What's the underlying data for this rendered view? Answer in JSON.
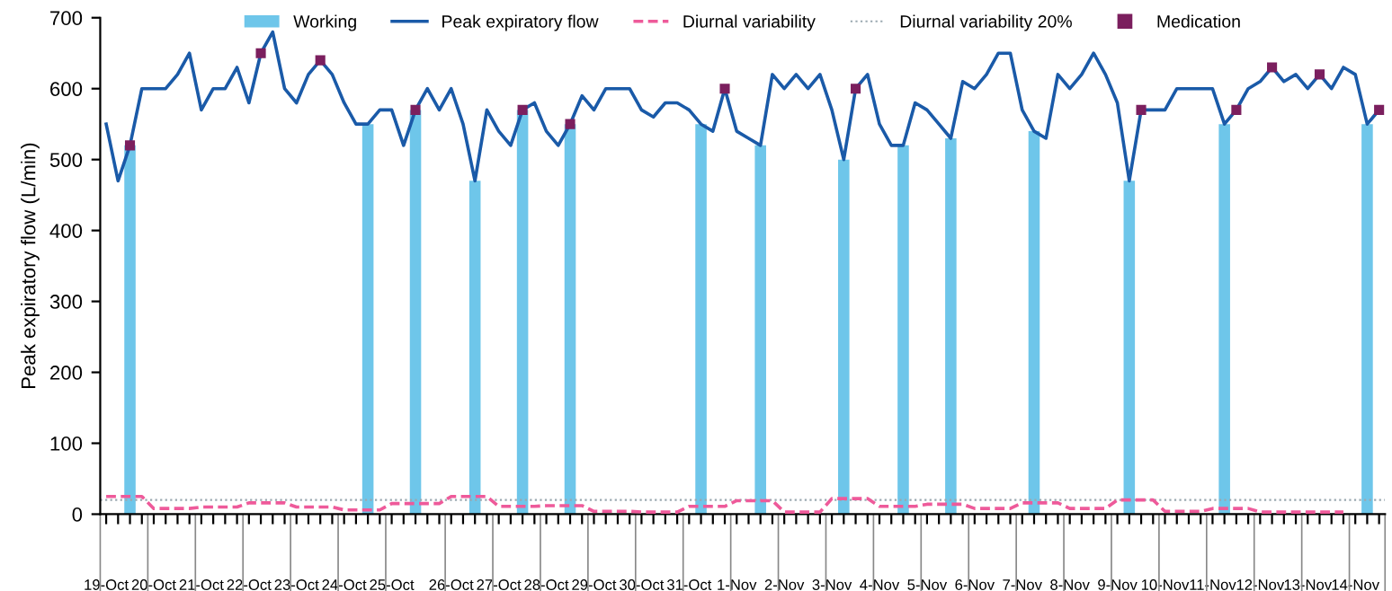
{
  "chart_data": {
    "type": "line",
    "ylabel": "Peak expiratory flow (L/min)",
    "categories": [
      "19-Oct",
      null,
      null,
      null,
      "20-Oct",
      null,
      null,
      null,
      "21-Oct",
      null,
      null,
      null,
      "22-Oct",
      null,
      null,
      null,
      "23-Oct",
      null,
      null,
      null,
      "24-Oct",
      null,
      null,
      null,
      "25-Oct",
      null,
      null,
      null,
      null,
      "26-Oct",
      null,
      null,
      null,
      "27-Oct",
      null,
      null,
      null,
      "28-Oct",
      null,
      null,
      null,
      "29-Oct",
      null,
      null,
      null,
      "30-Oct",
      null,
      null,
      null,
      "31-Oct",
      null,
      null,
      null,
      "1-Nov",
      null,
      null,
      null,
      "2-Nov",
      null,
      null,
      null,
      "3-Nov",
      null,
      null,
      null,
      "4-Nov",
      null,
      null,
      null,
      "5-Nov",
      null,
      null,
      null,
      "6-Nov",
      null,
      null,
      null,
      "7-Nov",
      null,
      null,
      null,
      "8-Nov",
      null,
      null,
      null,
      "9-Nov",
      null,
      null,
      null,
      "10-Nov",
      null,
      null,
      null,
      "11-Nov",
      null,
      null,
      null,
      "12-Nov",
      null,
      null,
      null,
      "13-Nov",
      null,
      null,
      null,
      "14-Nov",
      null,
      null
    ],
    "series": [
      {
        "name": "Working",
        "type": "bar",
        "color": "#6ec6ea",
        "values": [
          null,
          null,
          520,
          null,
          null,
          null,
          null,
          null,
          null,
          null,
          null,
          null,
          null,
          null,
          null,
          null,
          null,
          null,
          null,
          null,
          null,
          null,
          550,
          null,
          null,
          null,
          570,
          null,
          null,
          null,
          null,
          470,
          null,
          null,
          null,
          570,
          null,
          null,
          null,
          550,
          null,
          null,
          null,
          null,
          null,
          null,
          null,
          null,
          null,
          null,
          550,
          null,
          null,
          null,
          null,
          520,
          null,
          null,
          null,
          null,
          null,
          null,
          500,
          null,
          null,
          null,
          null,
          520,
          null,
          null,
          null,
          530,
          null,
          null,
          null,
          null,
          null,
          null,
          540,
          null,
          null,
          null,
          null,
          null,
          null,
          null,
          470,
          null,
          null,
          null,
          null,
          null,
          null,
          null,
          550,
          null,
          null,
          null,
          null,
          null,
          null,
          null,
          null,
          null,
          null,
          null,
          550,
          null
        ]
      },
      {
        "name": "Peak expiratory flow",
        "color": "#1a5aa8",
        "line_style": "solid",
        "values": [
          550,
          470,
          520,
          600,
          600,
          600,
          620,
          650,
          570,
          600,
          600,
          630,
          580,
          650,
          680,
          600,
          580,
          620,
          640,
          620,
          580,
          550,
          550,
          570,
          570,
          520,
          570,
          600,
          570,
          600,
          550,
          470,
          570,
          540,
          520,
          570,
          580,
          540,
          520,
          550,
          590,
          570,
          600,
          600,
          600,
          570,
          560,
          580,
          580,
          570,
          550,
          540,
          600,
          540,
          530,
          520,
          620,
          600,
          620,
          600,
          620,
          570,
          500,
          600,
          620,
          550,
          520,
          520,
          580,
          570,
          550,
          530,
          610,
          600,
          620,
          650,
          650,
          570,
          540,
          530,
          620,
          600,
          620,
          650,
          620,
          580,
          470,
          570,
          570,
          570,
          600,
          600,
          600,
          600,
          550,
          570,
          600,
          610,
          630,
          610,
          620,
          600,
          620,
          600,
          630,
          620,
          550,
          570
        ]
      },
      {
        "name": "Diurnal variability",
        "color": "#ee5a9a",
        "line_style": "dashed",
        "values": [
          25,
          25,
          25,
          25,
          8,
          8,
          8,
          8,
          10,
          10,
          10,
          10,
          16,
          16,
          16,
          16,
          10,
          10,
          10,
          10,
          6,
          6,
          6,
          6,
          15,
          15,
          15,
          15,
          15,
          25,
          25,
          25,
          25,
          11,
          11,
          11,
          11,
          12,
          12,
          12,
          12,
          4,
          4,
          4,
          4,
          3,
          3,
          3,
          3,
          11,
          11,
          11,
          11,
          19,
          19,
          19,
          19,
          3,
          3,
          3,
          3,
          22,
          22,
          22,
          22,
          11,
          11,
          11,
          11,
          14,
          14,
          14,
          14,
          8,
          8,
          8,
          8,
          16,
          16,
          16,
          16,
          8,
          8,
          8,
          8,
          20,
          20,
          20,
          20,
          4,
          4,
          4,
          4,
          8,
          8,
          8,
          8,
          3,
          3,
          3,
          3,
          3,
          3,
          3,
          3,
          null,
          null,
          null
        ]
      },
      {
        "name": "Medication",
        "type": "scatter",
        "color": "#7b1f5e",
        "marker": "square",
        "values": [
          null,
          null,
          520,
          null,
          null,
          null,
          null,
          null,
          null,
          null,
          null,
          null,
          null,
          650,
          null,
          null,
          null,
          null,
          640,
          null,
          null,
          null,
          null,
          null,
          null,
          null,
          570,
          null,
          null,
          null,
          null,
          null,
          null,
          null,
          null,
          570,
          null,
          null,
          null,
          550,
          null,
          null,
          null,
          null,
          null,
          null,
          null,
          null,
          null,
          null,
          null,
          null,
          600,
          null,
          null,
          null,
          null,
          null,
          null,
          null,
          null,
          null,
          null,
          600,
          null,
          null,
          null,
          null,
          null,
          null,
          null,
          null,
          null,
          null,
          null,
          null,
          null,
          null,
          null,
          null,
          null,
          null,
          null,
          null,
          null,
          null,
          null,
          570,
          null,
          null,
          null,
          null,
          null,
          null,
          null,
          570,
          null,
          null,
          630,
          null,
          null,
          null,
          620,
          null,
          null,
          null,
          null,
          570
        ]
      }
    ],
    "ref_lines": [
      {
        "axis": "y",
        "value": 20,
        "label": "Diurnal variability 20%",
        "color": "#9aa8b0",
        "line_style": "dotted"
      }
    ],
    "ylim": [
      0,
      700
    ],
    "yticks": [
      0,
      100,
      200,
      300,
      400,
      500,
      600,
      700
    ],
    "grid": false,
    "legend": "top"
  }
}
